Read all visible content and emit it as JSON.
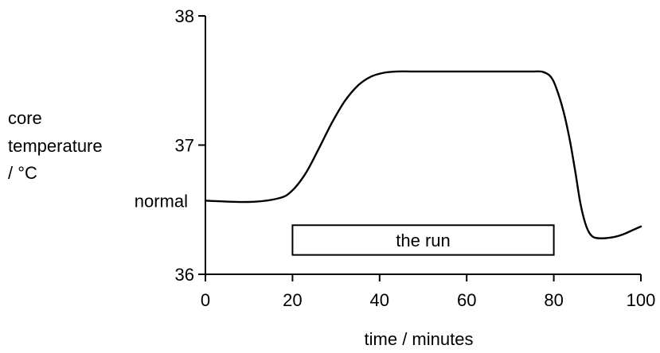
{
  "chart_data": {
    "type": "line",
    "title": "",
    "xlabel": "time / minutes",
    "ylabel": [
      "core",
      "temperature",
      "/ °C"
    ],
    "xlim": [
      0,
      100
    ],
    "ylim": [
      36,
      38
    ],
    "x_ticks": [
      0,
      20,
      40,
      60,
      80,
      100
    ],
    "y_ticks": [
      36,
      37,
      38
    ],
    "grid": false,
    "annotations": {
      "normal_label": "normal",
      "normal_value": 36.57,
      "run_label": "the run",
      "run_start": 20,
      "run_end": 80,
      "run_box_y": [
        36.15,
        36.38
      ]
    },
    "series": [
      {
        "color": "#000000",
        "x": [
          0,
          10,
          17,
          20,
          23,
          26,
          29,
          32,
          35,
          38,
          41,
          44,
          47,
          50,
          60,
          70,
          75,
          77,
          78,
          79,
          80,
          81,
          82,
          83,
          84,
          85,
          86,
          87,
          88,
          89,
          90,
          92,
          94,
          96,
          98,
          100
        ],
        "y": [
          36.57,
          36.56,
          36.59,
          36.65,
          36.78,
          36.97,
          37.17,
          37.34,
          37.46,
          37.53,
          37.56,
          37.57,
          37.57,
          37.57,
          37.57,
          37.57,
          37.57,
          37.57,
          37.56,
          37.54,
          37.49,
          37.4,
          37.29,
          37.15,
          36.98,
          36.78,
          36.57,
          36.42,
          36.33,
          36.29,
          36.28,
          36.28,
          36.29,
          36.31,
          36.34,
          36.37
        ]
      }
    ]
  }
}
